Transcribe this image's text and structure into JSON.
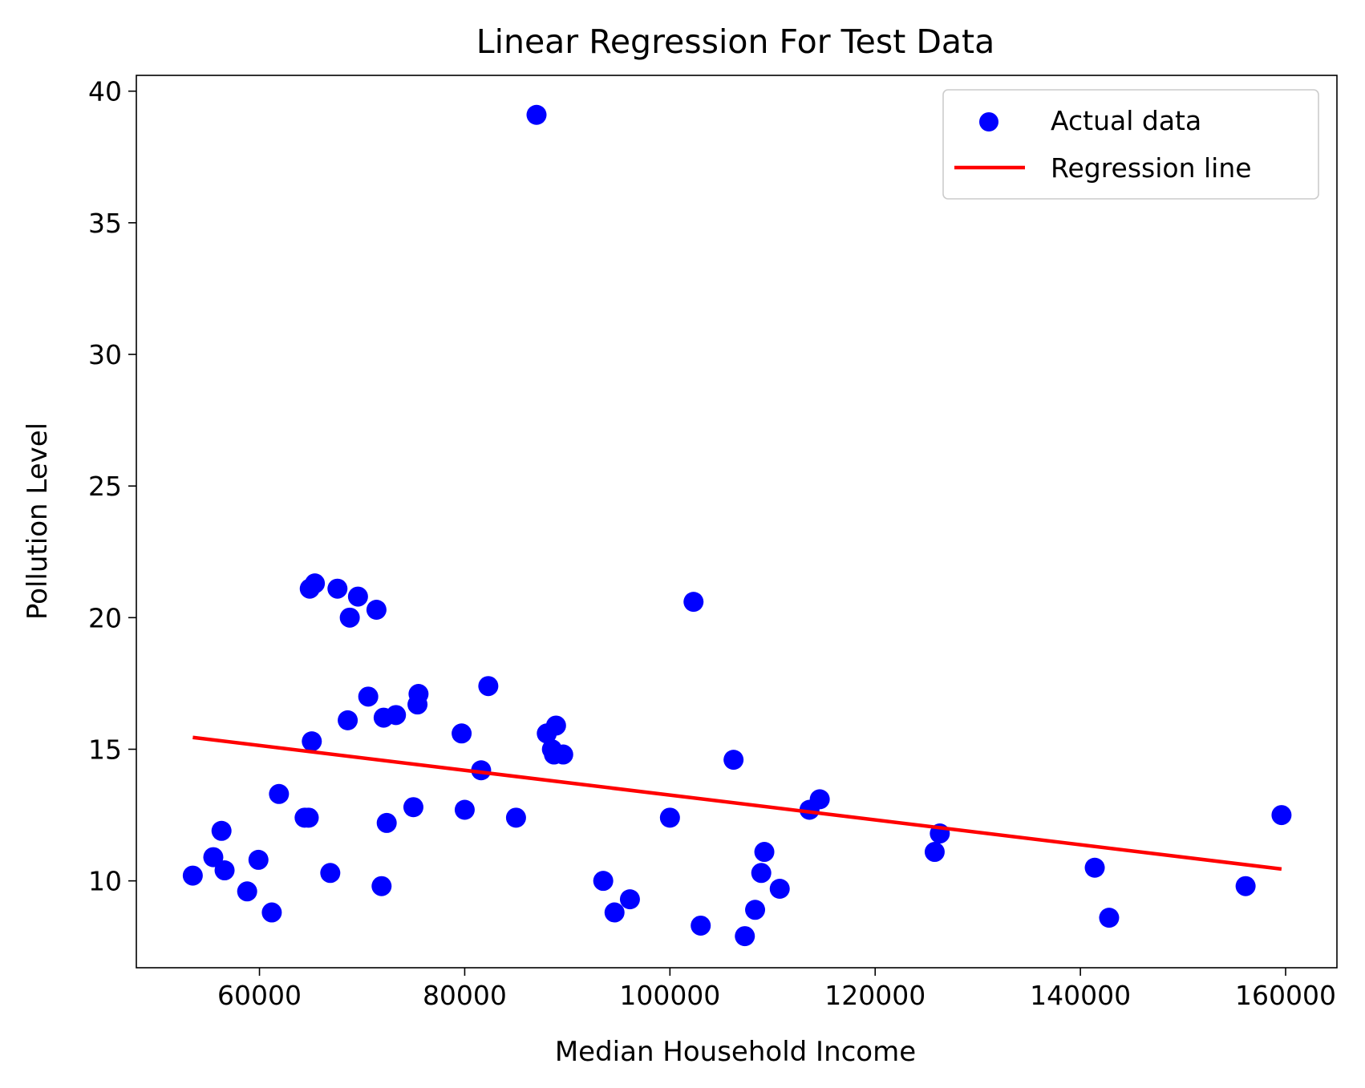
{
  "chart_data": {
    "type": "scatter",
    "title": "Linear Regression For Test Data",
    "xlabel": "Median Household Income",
    "ylabel": "Pollution Level",
    "xlim": [
      48000,
      165000
    ],
    "ylim": [
      6.7,
      40.6
    ],
    "xticks": [
      60000,
      80000,
      100000,
      120000,
      140000,
      160000
    ],
    "yticks": [
      10,
      15,
      20,
      25,
      30,
      35,
      40
    ],
    "grid": false,
    "legend_position": "top-right",
    "series": [
      {
        "name": "Actual data",
        "kind": "scatter",
        "color": "#0000ff",
        "points": [
          [
            53500,
            10.2
          ],
          [
            55500,
            10.9
          ],
          [
            56300,
            11.9
          ],
          [
            56600,
            10.4
          ],
          [
            58800,
            9.6
          ],
          [
            59900,
            10.8
          ],
          [
            61200,
            8.8
          ],
          [
            61900,
            13.3
          ],
          [
            64400,
            12.4
          ],
          [
            64800,
            12.4
          ],
          [
            64900,
            21.1
          ],
          [
            65100,
            15.3
          ],
          [
            65400,
            21.3
          ],
          [
            66900,
            10.3
          ],
          [
            67600,
            21.1
          ],
          [
            68600,
            16.1
          ],
          [
            68800,
            20.0
          ],
          [
            69600,
            20.8
          ],
          [
            70600,
            17.0
          ],
          [
            71400,
            20.3
          ],
          [
            71900,
            9.8
          ],
          [
            72100,
            16.2
          ],
          [
            72400,
            12.2
          ],
          [
            73300,
            16.3
          ],
          [
            75000,
            12.8
          ],
          [
            75400,
            16.7
          ],
          [
            75500,
            17.1
          ],
          [
            79700,
            15.6
          ],
          [
            80000,
            12.7
          ],
          [
            81600,
            14.2
          ],
          [
            82300,
            17.4
          ],
          [
            85000,
            12.4
          ],
          [
            87000,
            39.1
          ],
          [
            88000,
            15.6
          ],
          [
            88500,
            15.0
          ],
          [
            88700,
            14.8
          ],
          [
            88900,
            15.9
          ],
          [
            89600,
            14.8
          ],
          [
            93500,
            10.0
          ],
          [
            94600,
            8.8
          ],
          [
            96100,
            9.3
          ],
          [
            100000,
            12.4
          ],
          [
            102300,
            20.6
          ],
          [
            103000,
            8.3
          ],
          [
            106200,
            14.6
          ],
          [
            107300,
            7.9
          ],
          [
            108300,
            8.9
          ],
          [
            108900,
            10.3
          ],
          [
            109200,
            11.1
          ],
          [
            110700,
            9.7
          ],
          [
            113600,
            12.7
          ],
          [
            114600,
            13.1
          ],
          [
            125800,
            11.1
          ],
          [
            126300,
            11.8
          ],
          [
            141400,
            10.5
          ],
          [
            142800,
            8.6
          ],
          [
            156100,
            9.8
          ],
          [
            159600,
            12.5
          ]
        ]
      },
      {
        "name": "Regression line",
        "kind": "line",
        "color": "#ff0000",
        "points": [
          [
            53500,
            15.45
          ],
          [
            159600,
            10.45
          ]
        ]
      }
    ]
  }
}
